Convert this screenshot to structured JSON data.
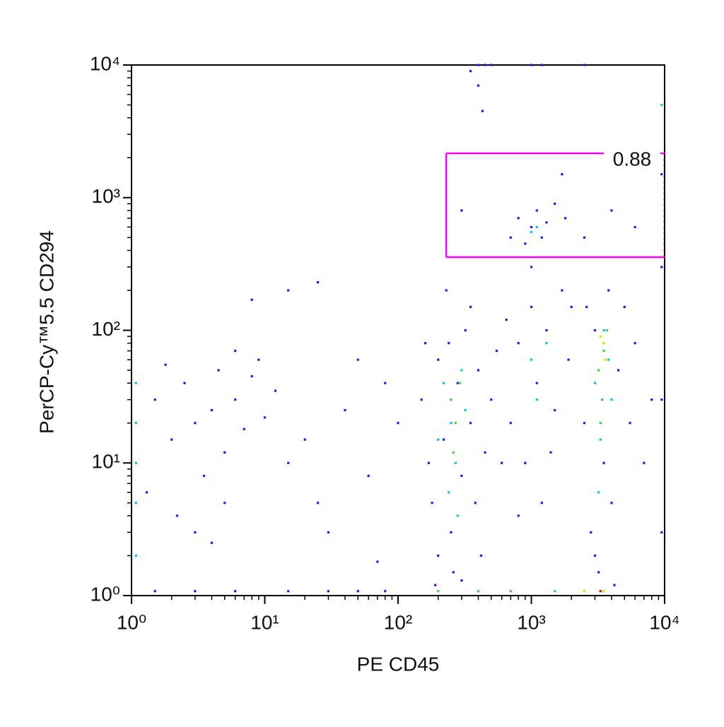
{
  "chart_data": {
    "type": "scatter",
    "x_label": "PE CD45",
    "y_label": "PerCP-Cy™5.5 CD294",
    "xscale": "log",
    "yscale": "log",
    "xlim": [
      1,
      10000
    ],
    "ylim": [
      1,
      10000
    ],
    "xticks": [
      {
        "value": 1,
        "label": "10⁰"
      },
      {
        "value": 10,
        "label": "10¹"
      },
      {
        "value": 100,
        "label": "10²"
      },
      {
        "value": 1000,
        "label": "10³"
      },
      {
        "value": 10000,
        "label": "10⁴"
      }
    ],
    "yticks": [
      {
        "value": 1,
        "label": "10⁰"
      },
      {
        "value": 10,
        "label": "10¹"
      },
      {
        "value": 100,
        "label": "10²"
      },
      {
        "value": 1000,
        "label": "10³"
      },
      {
        "value": 10000,
        "label": "10⁴"
      }
    ],
    "xminorticks": [
      2,
      3,
      4,
      5,
      6,
      7,
      8,
      9,
      20,
      30,
      40,
      50,
      60,
      70,
      80,
      90,
      200,
      300,
      400,
      500,
      600,
      700,
      800,
      900,
      2000,
      3000,
      4000,
      5000,
      6000,
      7000,
      8000,
      9000
    ],
    "yminorticks": [
      2,
      3,
      4,
      5,
      6,
      7,
      8,
      9,
      20,
      30,
      40,
      50,
      60,
      70,
      80,
      90,
      200,
      300,
      400,
      500,
      600,
      700,
      800,
      900,
      2000,
      3000,
      4000,
      5000,
      6000,
      7000,
      8000,
      9000
    ],
    "gate": {
      "xlim": [
        230,
        10000
      ],
      "ylim": [
        356,
        2160
      ],
      "label": "0.88",
      "color": "#ff00ff"
    },
    "series": [
      {
        "color": "#1a1aff",
        "x": [
          1.5,
          2,
          2.5,
          3,
          3.5,
          4,
          4.5,
          5,
          6,
          7,
          8,
          10,
          12,
          15,
          1.3,
          2.2,
          3,
          5,
          9,
          6,
          1.8,
          4,
          20,
          25,
          40,
          60,
          80,
          30,
          50,
          100,
          15,
          8,
          25,
          70,
          150,
          170,
          180,
          200,
          200,
          220,
          240,
          250,
          260,
          280,
          300,
          320,
          350,
          380,
          400,
          450,
          500,
          550,
          600,
          160,
          190,
          300,
          420,
          230,
          350,
          700,
          800,
          900,
          1000,
          1100,
          1200,
          1300,
          1500,
          1700,
          1900,
          800,
          1000,
          1400,
          650,
          2000,
          2500,
          2800,
          3000,
          3200,
          3500,
          3800,
          4000,
          4500,
          5000,
          5500,
          6000,
          7000,
          3000,
          2600,
          8000,
          4200,
          700,
          800,
          900,
          1000,
          1100,
          1200,
          1300,
          1500,
          1800,
          1700,
          2500,
          4000,
          300,
          6000,
          400,
          450,
          500,
          350,
          430,
          1000,
          1200,
          2500,
          400,
          1.5,
          3,
          6,
          15,
          30,
          50,
          80,
          9500,
          9500,
          9500,
          9500
        ],
        "values": [
          30,
          15,
          40,
          20,
          8,
          25,
          50,
          12,
          30,
          18,
          45,
          22,
          35,
          10,
          6,
          4,
          3,
          5,
          60,
          70,
          55,
          2.5,
          15,
          5,
          25,
          8,
          40,
          3,
          60,
          20,
          200,
          170,
          230,
          1.8,
          30,
          10,
          5,
          60,
          2,
          15,
          80,
          3,
          1.5,
          40,
          8,
          100,
          20,
          5,
          50,
          12,
          30,
          70,
          10,
          80,
          1.2,
          1.3,
          2,
          200,
          150,
          20,
          80,
          10,
          150,
          40,
          5,
          100,
          25,
          200,
          60,
          4,
          300,
          12,
          120,
          150,
          20,
          3,
          100,
          1.5,
          10,
          200,
          5,
          50,
          150,
          20,
          80,
          10,
          2,
          150,
          30,
          1.2,
          500,
          700,
          450,
          600,
          800,
          500,
          650,
          900,
          700,
          1500,
          500,
          800,
          800,
          600,
          10000,
          10000,
          10000,
          9000,
          4500,
          10000,
          10000,
          10000,
          7000,
          1.08,
          1.08,
          1.08,
          1.08,
          1.08,
          1.08,
          1.08,
          3,
          30,
          300,
          1500
        ]
      },
      {
        "color": "#00c8e6",
        "x": [
          220,
          250,
          270,
          300,
          240,
          320,
          200,
          280,
          1000,
          1100,
          1300,
          3000,
          3300,
          3500,
          4000,
          3200,
          3800,
          1100,
          1000,
          1.08,
          1.08,
          1.08,
          1.08,
          1.08,
          9500
        ],
        "values": [
          40,
          20,
          10,
          50,
          6,
          25,
          15,
          4,
          60,
          30,
          80,
          40,
          15,
          100,
          30,
          6,
          60,
          600,
          550,
          2,
          5,
          10,
          20,
          40,
          5000
        ]
      },
      {
        "color": "#3cd23c",
        "x": [
          250,
          270,
          290,
          260,
          3200,
          3500,
          3400,
          3700,
          3300,
          200,
          400,
          700,
          1500
        ],
        "values": [
          30,
          20,
          40,
          12,
          50,
          70,
          30,
          100,
          20,
          1.08,
          1.08,
          1.08,
          1.08
        ]
      },
      {
        "color": "#e6dc00",
        "x": [
          3500,
          3600,
          3300,
          2500,
          3500
        ],
        "values": [
          80,
          60,
          90,
          1.08,
          1.08
        ]
      },
      {
        "color": "#e60000",
        "x": [
          3300
        ],
        "values": [
          1.08
        ]
      }
    ]
  }
}
